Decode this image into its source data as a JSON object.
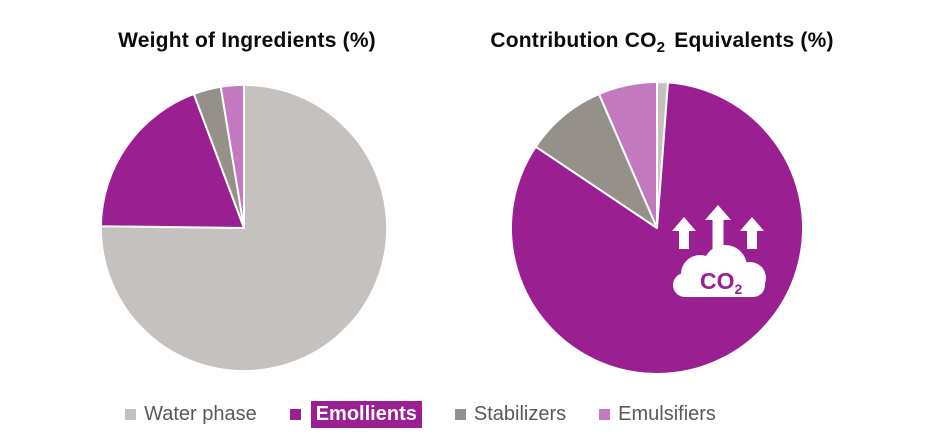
{
  "titles": {
    "left": "Weight of Ingredients (%)",
    "right": {
      "prefix": "Contribution CO",
      "sub": "2",
      "suffix": " Equivalents (%)"
    }
  },
  "chart_data": [
    {
      "type": "pie",
      "title": "Weight of Ingredients (%)",
      "categories": [
        "Water phase",
        "Emollients",
        "Stabilizers",
        "Emulsifiers"
      ],
      "values": [
        75.2,
        19.1,
        3.1,
        2.6
      ],
      "unit": "%",
      "colors": [
        "#C4C1BE",
        "#9A1F90",
        "#96908A",
        "#C379BD"
      ],
      "start_angle_deg": 0,
      "direction": "clockwise",
      "separator_color": "#ffffff",
      "legend_position": "bottom"
    },
    {
      "type": "pie",
      "title": "Contribution CO2 Equivalents (%)",
      "categories": [
        "Water phase",
        "Emollients",
        "Stabilizers",
        "Emulsifiers"
      ],
      "values": [
        1.2,
        83.2,
        9.1,
        6.5
      ],
      "unit": "%",
      "colors": [
        "#C4C1BE",
        "#9A1F90",
        "#96908A",
        "#C379BD"
      ],
      "start_angle_deg": 0,
      "direction": "clockwise",
      "separator_color": "#ffffff",
      "legend_position": "bottom",
      "overlay_icon": "co2-cloud-with-up-arrows"
    }
  ],
  "legend": {
    "text_color": "#595959",
    "items": [
      {
        "label": "Water phase",
        "color": "#C4C1BE",
        "highlighted": false
      },
      {
        "label": "Emollients",
        "color": "#9A1F90",
        "highlighted": true
      },
      {
        "label": "Stabilizers",
        "color": "#96908A",
        "highlighted": false
      },
      {
        "label": "Emulsifiers",
        "color": "#C379BD",
        "highlighted": false
      }
    ]
  },
  "co2_icon": {
    "text": "CO",
    "subscript": "2"
  }
}
